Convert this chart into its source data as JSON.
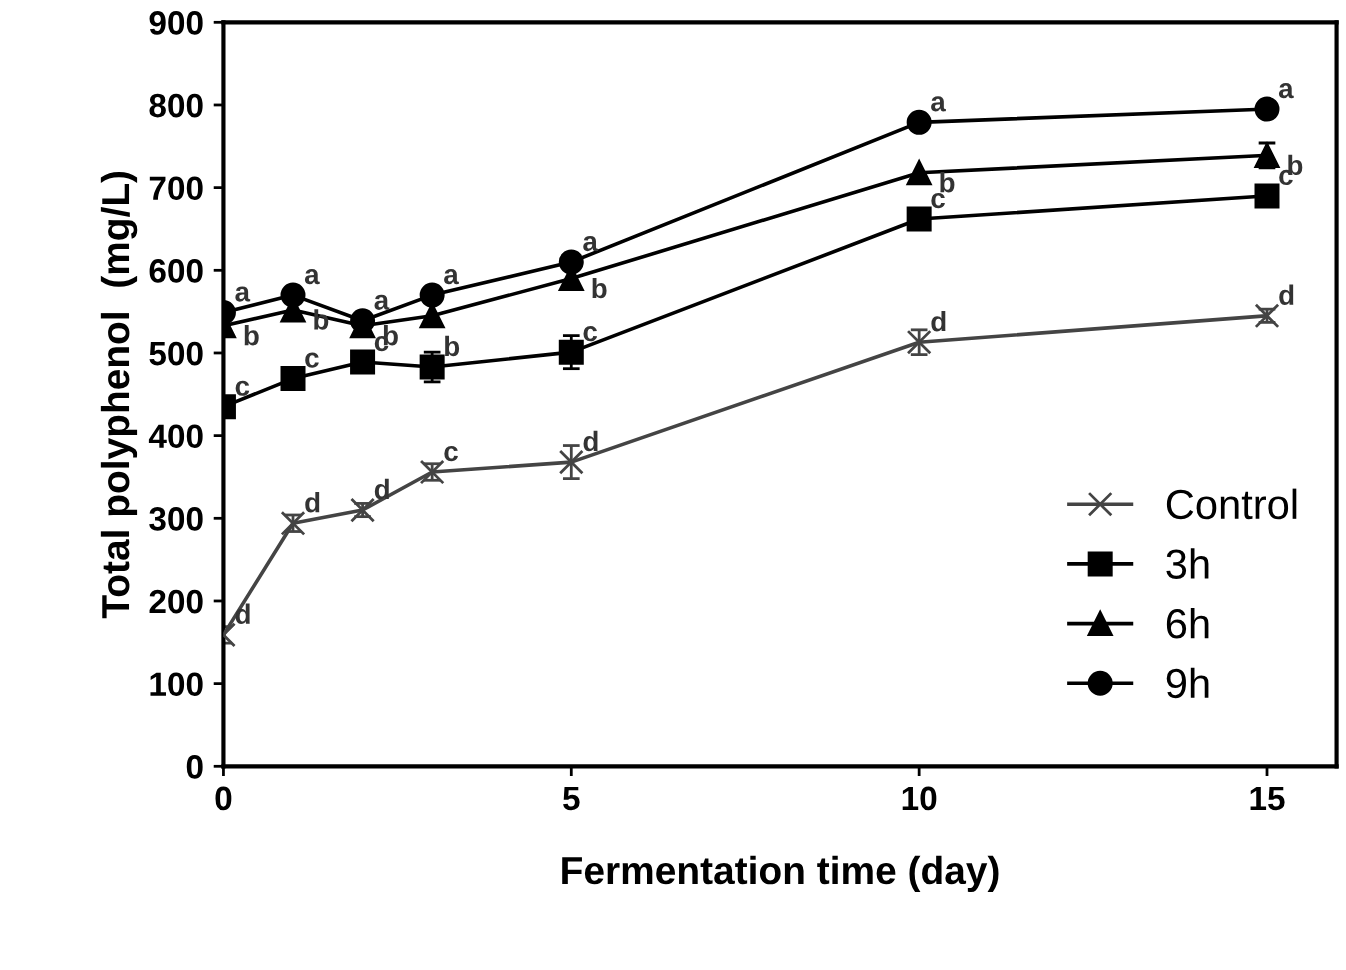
{
  "chart_data": {
    "type": "line",
    "xlabel": "Fermentation time (day)",
    "ylabel": "Total polyphenol  (mg/L)",
    "x": [
      0,
      1,
      2,
      3,
      5,
      10,
      15
    ],
    "series": [
      {
        "name": "Control",
        "color": "#444444",
        "marker": "cross",
        "values": [
          159,
          294,
          310,
          356,
          368,
          513,
          545
        ],
        "errors": [
          10,
          10,
          8,
          10,
          20,
          15,
          8
        ]
      },
      {
        "name": "3h",
        "color": "#000000",
        "marker": "square",
        "values": [
          435,
          469,
          489,
          483,
          501,
          662,
          690
        ],
        "errors": [
          null,
          null,
          null,
          18,
          20,
          null,
          null
        ]
      },
      {
        "name": "6h",
        "color": "#000000",
        "marker": "triangle",
        "values": [
          533,
          552,
          533,
          545,
          590,
          718,
          739
        ],
        "errors": [
          null,
          null,
          null,
          null,
          null,
          null,
          15
        ]
      },
      {
        "name": "9h",
        "color": "#000000",
        "marker": "circle",
        "values": [
          549,
          570,
          539,
          570,
          610,
          779,
          795
        ]
      }
    ],
    "xlim": [
      0,
      16
    ],
    "ylim": [
      0,
      900
    ],
    "xticks": [
      0,
      5,
      10,
      15
    ],
    "yticks": [
      0,
      100,
      200,
      300,
      400,
      500,
      600,
      700,
      800,
      900
    ],
    "grid": false,
    "legend": "bottom right",
    "line_style": "solid",
    "annotations": [
      {
        "text": "d",
        "x": 0,
        "y": 159
      },
      {
        "text": "d",
        "x": 1,
        "y": 294
      },
      {
        "text": "d",
        "x": 2,
        "y": 310
      },
      {
        "text": "c",
        "x": 3,
        "y": 356
      },
      {
        "text": "d",
        "x": 5,
        "y": 368
      },
      {
        "text": "d",
        "x": 10,
        "y": 513
      },
      {
        "text": "d",
        "x": 15,
        "y": 545
      },
      {
        "text": "c",
        "x": 0,
        "y": 435
      },
      {
        "text": "c",
        "x": 1,
        "y": 469
      },
      {
        "text": "c",
        "x": 2,
        "y": 489
      },
      {
        "text": "b",
        "x": 3,
        "y": 483
      },
      {
        "text": "c",
        "x": 5,
        "y": 501
      },
      {
        "text": "c",
        "x": 10,
        "y": 662
      },
      {
        "text": "c",
        "x": 15,
        "y": 690
      },
      {
        "text": "b",
        "x": 0,
        "y": 533
      },
      {
        "text": "b",
        "x": 1,
        "y": 552
      },
      {
        "text": "b",
        "x": 2,
        "y": 533
      },
      {
        "text": "b",
        "x": 5,
        "y": 590
      },
      {
        "text": "b",
        "x": 10,
        "y": 718
      },
      {
        "text": "b",
        "x": 15,
        "y": 739
      },
      {
        "text": "a",
        "x": 0,
        "y": 549
      },
      {
        "text": "a",
        "x": 1,
        "y": 570
      },
      {
        "text": "a",
        "x": 2,
        "y": 539
      },
      {
        "text": "a",
        "x": 3,
        "y": 570
      },
      {
        "text": "a",
        "x": 5,
        "y": 610
      },
      {
        "text": "a",
        "x": 10,
        "y": 779
      },
      {
        "text": "a",
        "x": 15,
        "y": 795
      }
    ]
  }
}
